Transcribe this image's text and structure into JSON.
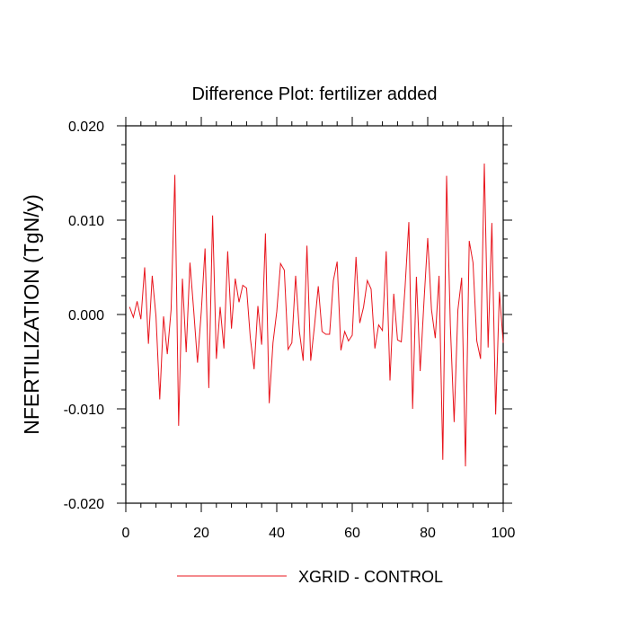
{
  "chart_data": {
    "type": "line",
    "title": "Difference Plot: fertilizer added",
    "xlabel": "",
    "ylabel": "NFERTILIZATION  (TgN/y)",
    "xlim": [
      0,
      100
    ],
    "ylim": [
      -0.02,
      0.02
    ],
    "xticks": [
      0,
      20,
      40,
      60,
      80,
      100
    ],
    "xtick_labels": [
      "0",
      "20",
      "40",
      "60",
      "80",
      "100"
    ],
    "yticks": [
      -0.02,
      -0.01,
      0.0,
      0.01,
      0.02
    ],
    "ytick_labels": [
      "-0.020",
      "-0.010",
      "0.000",
      "0.010",
      "0.020"
    ],
    "grid": false,
    "legend_position": "bottom-center",
    "series": [
      {
        "name": "XGRID - CONTROL",
        "color": "#e8141c",
        "x": [
          1,
          2,
          3,
          4,
          5,
          6,
          7,
          8,
          9,
          10,
          11,
          12,
          13,
          14,
          15,
          16,
          17,
          18,
          19,
          20,
          21,
          22,
          23,
          24,
          25,
          26,
          27,
          28,
          29,
          30,
          31,
          32,
          33,
          34,
          35,
          36,
          37,
          38,
          39,
          40,
          41,
          42,
          43,
          44,
          45,
          46,
          47,
          48,
          49,
          50,
          51,
          52,
          53,
          54,
          55,
          56,
          57,
          58,
          59,
          60,
          61,
          62,
          63,
          64,
          65,
          66,
          67,
          68,
          69,
          70,
          71,
          72,
          73,
          74,
          75,
          76,
          77,
          78,
          79,
          80,
          81,
          82,
          83,
          84,
          85,
          86,
          87,
          88,
          89,
          90,
          91,
          92,
          93,
          94,
          95,
          96,
          97,
          98,
          99,
          100
        ],
        "values": [
          0.0008,
          -0.0003,
          0.0014,
          -0.0005,
          0.005,
          -0.0031,
          0.0041,
          -0.0002,
          -0.009,
          -0.0002,
          -0.0042,
          0.0005,
          0.0148,
          -0.0118,
          0.0038,
          -0.004,
          0.0055,
          0.0004,
          -0.0051,
          0.0003,
          0.007,
          -0.0078,
          0.0105,
          -0.0047,
          0.0008,
          -0.0036,
          0.0067,
          -0.0015,
          0.0038,
          0.0013,
          0.0031,
          0.0028,
          -0.0025,
          -0.0058,
          0.0009,
          -0.0032,
          0.0086,
          -0.0094,
          -0.003,
          0.0003,
          0.0054,
          0.0047,
          -0.0037,
          -0.003,
          0.0041,
          -0.0018,
          -0.0049,
          0.0073,
          -0.0049,
          -0.0012,
          0.003,
          -0.0018,
          -0.0021,
          -0.0021,
          0.0036,
          0.0056,
          -0.0038,
          -0.0018,
          -0.0028,
          -0.0022,
          0.0061,
          -0.0009,
          0.0008,
          0.0036,
          0.0027,
          -0.0036,
          -0.0011,
          -0.0017,
          0.0067,
          -0.007,
          0.0022,
          -0.0027,
          -0.0029,
          0.0029,
          0.0098,
          -0.01,
          0.004,
          -0.006,
          0.0013,
          0.0081,
          0.0005,
          -0.0025,
          0.0041,
          -0.0154,
          0.0147,
          -0.0012,
          -0.0114,
          0.0005,
          0.0039,
          -0.0161,
          0.0078,
          0.0055,
          -0.0028,
          -0.0047,
          0.016,
          -0.0035,
          0.0097,
          -0.0106,
          0.0024,
          -0.003
        ]
      }
    ]
  }
}
